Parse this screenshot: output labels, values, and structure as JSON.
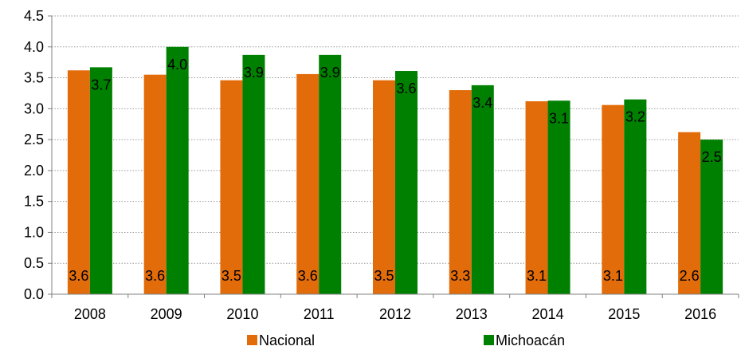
{
  "chart_data": {
    "type": "bar",
    "title": "",
    "xlabel": "",
    "ylabel": "",
    "categories": [
      "2008",
      "2009",
      "2010",
      "2011",
      "2012",
      "2013",
      "2014",
      "2015",
      "2016"
    ],
    "series": [
      {
        "name": "Nacional",
        "color": "#E36C0A",
        "values": [
          3.62,
          3.55,
          3.46,
          3.56,
          3.46,
          3.3,
          3.12,
          3.06,
          2.62
        ],
        "labels": [
          "3.6",
          "3.6",
          "3.5",
          "3.6",
          "3.5",
          "3.3",
          "3.1",
          "3.1",
          "2.6"
        ]
      },
      {
        "name": "Michoacán",
        "color": "#008000",
        "values": [
          3.67,
          4.0,
          3.87,
          3.87,
          3.61,
          3.38,
          3.13,
          3.15,
          2.5
        ],
        "labels": [
          "3.7",
          "4.0",
          "3.9",
          "3.9",
          "3.6",
          "3.4",
          "3.1",
          "3.2",
          "2.5"
        ]
      }
    ],
    "ylim": [
      0,
      4.5
    ],
    "yticks": [
      "0.0",
      "0.5",
      "1.0",
      "1.5",
      "2.0",
      "2.5",
      "3.0",
      "3.5",
      "4.0",
      "4.5"
    ],
    "grid": true,
    "legend_position": "bottom"
  }
}
